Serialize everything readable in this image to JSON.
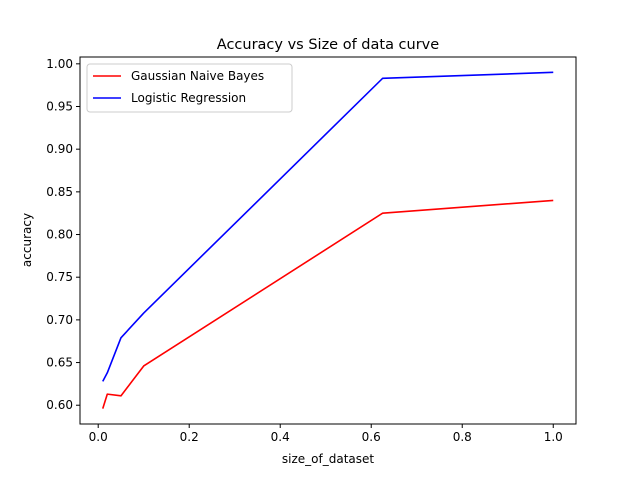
{
  "chart_data": {
    "type": "line",
    "title": "Accuracy vs Size of data curve",
    "xlabel": "size_of_dataset",
    "ylabel": "accuracy",
    "xlim": [
      -0.04,
      1.05
    ],
    "ylim": [
      0.578,
      1.008
    ],
    "xticks": [
      0.0,
      0.2,
      0.4,
      0.6,
      0.8,
      1.0
    ],
    "xtick_labels": [
      "0.0",
      "0.2",
      "0.4",
      "0.6",
      "0.8",
      "1.0"
    ],
    "yticks": [
      0.6,
      0.65,
      0.7,
      0.75,
      0.8,
      0.85,
      0.9,
      0.95,
      1.0
    ],
    "ytick_labels": [
      "0.60",
      "0.65",
      "0.70",
      "0.75",
      "0.80",
      "0.85",
      "0.90",
      "0.95",
      "1.00"
    ],
    "grid": false,
    "legend_position": "top-left",
    "series": [
      {
        "name": "Gaussian Naive Bayes",
        "color": "#ff0000",
        "x": [
          0.01,
          0.02,
          0.05,
          0.1,
          0.625,
          1.0
        ],
        "y": [
          0.596,
          0.613,
          0.611,
          0.646,
          0.825,
          0.84
        ]
      },
      {
        "name": "Logistic Regression",
        "color": "#0000ff",
        "x": [
          0.01,
          0.02,
          0.05,
          0.1,
          0.625,
          1.0
        ],
        "y": [
          0.628,
          0.638,
          0.679,
          0.708,
          0.983,
          0.99
        ]
      }
    ]
  }
}
